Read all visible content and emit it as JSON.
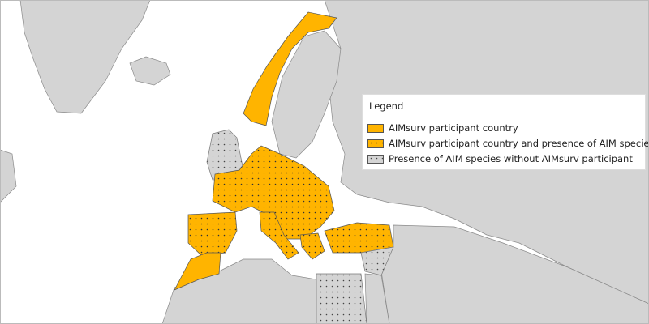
{
  "colors": {
    "sea": "#ffffff",
    "land": "#d4d4d4",
    "participant": "#ffb400",
    "border": "#555555"
  },
  "legend": {
    "title": "Legend",
    "items": [
      {
        "label": "AIMsurv participant country",
        "style": "solid-orange"
      },
      {
        "label": "AIMsurv participant country and presence of AIM species",
        "style": "dotted-orange"
      },
      {
        "label": "Presence of AIM species without AIMsurv participant",
        "style": "dotted-gray"
      }
    ]
  }
}
